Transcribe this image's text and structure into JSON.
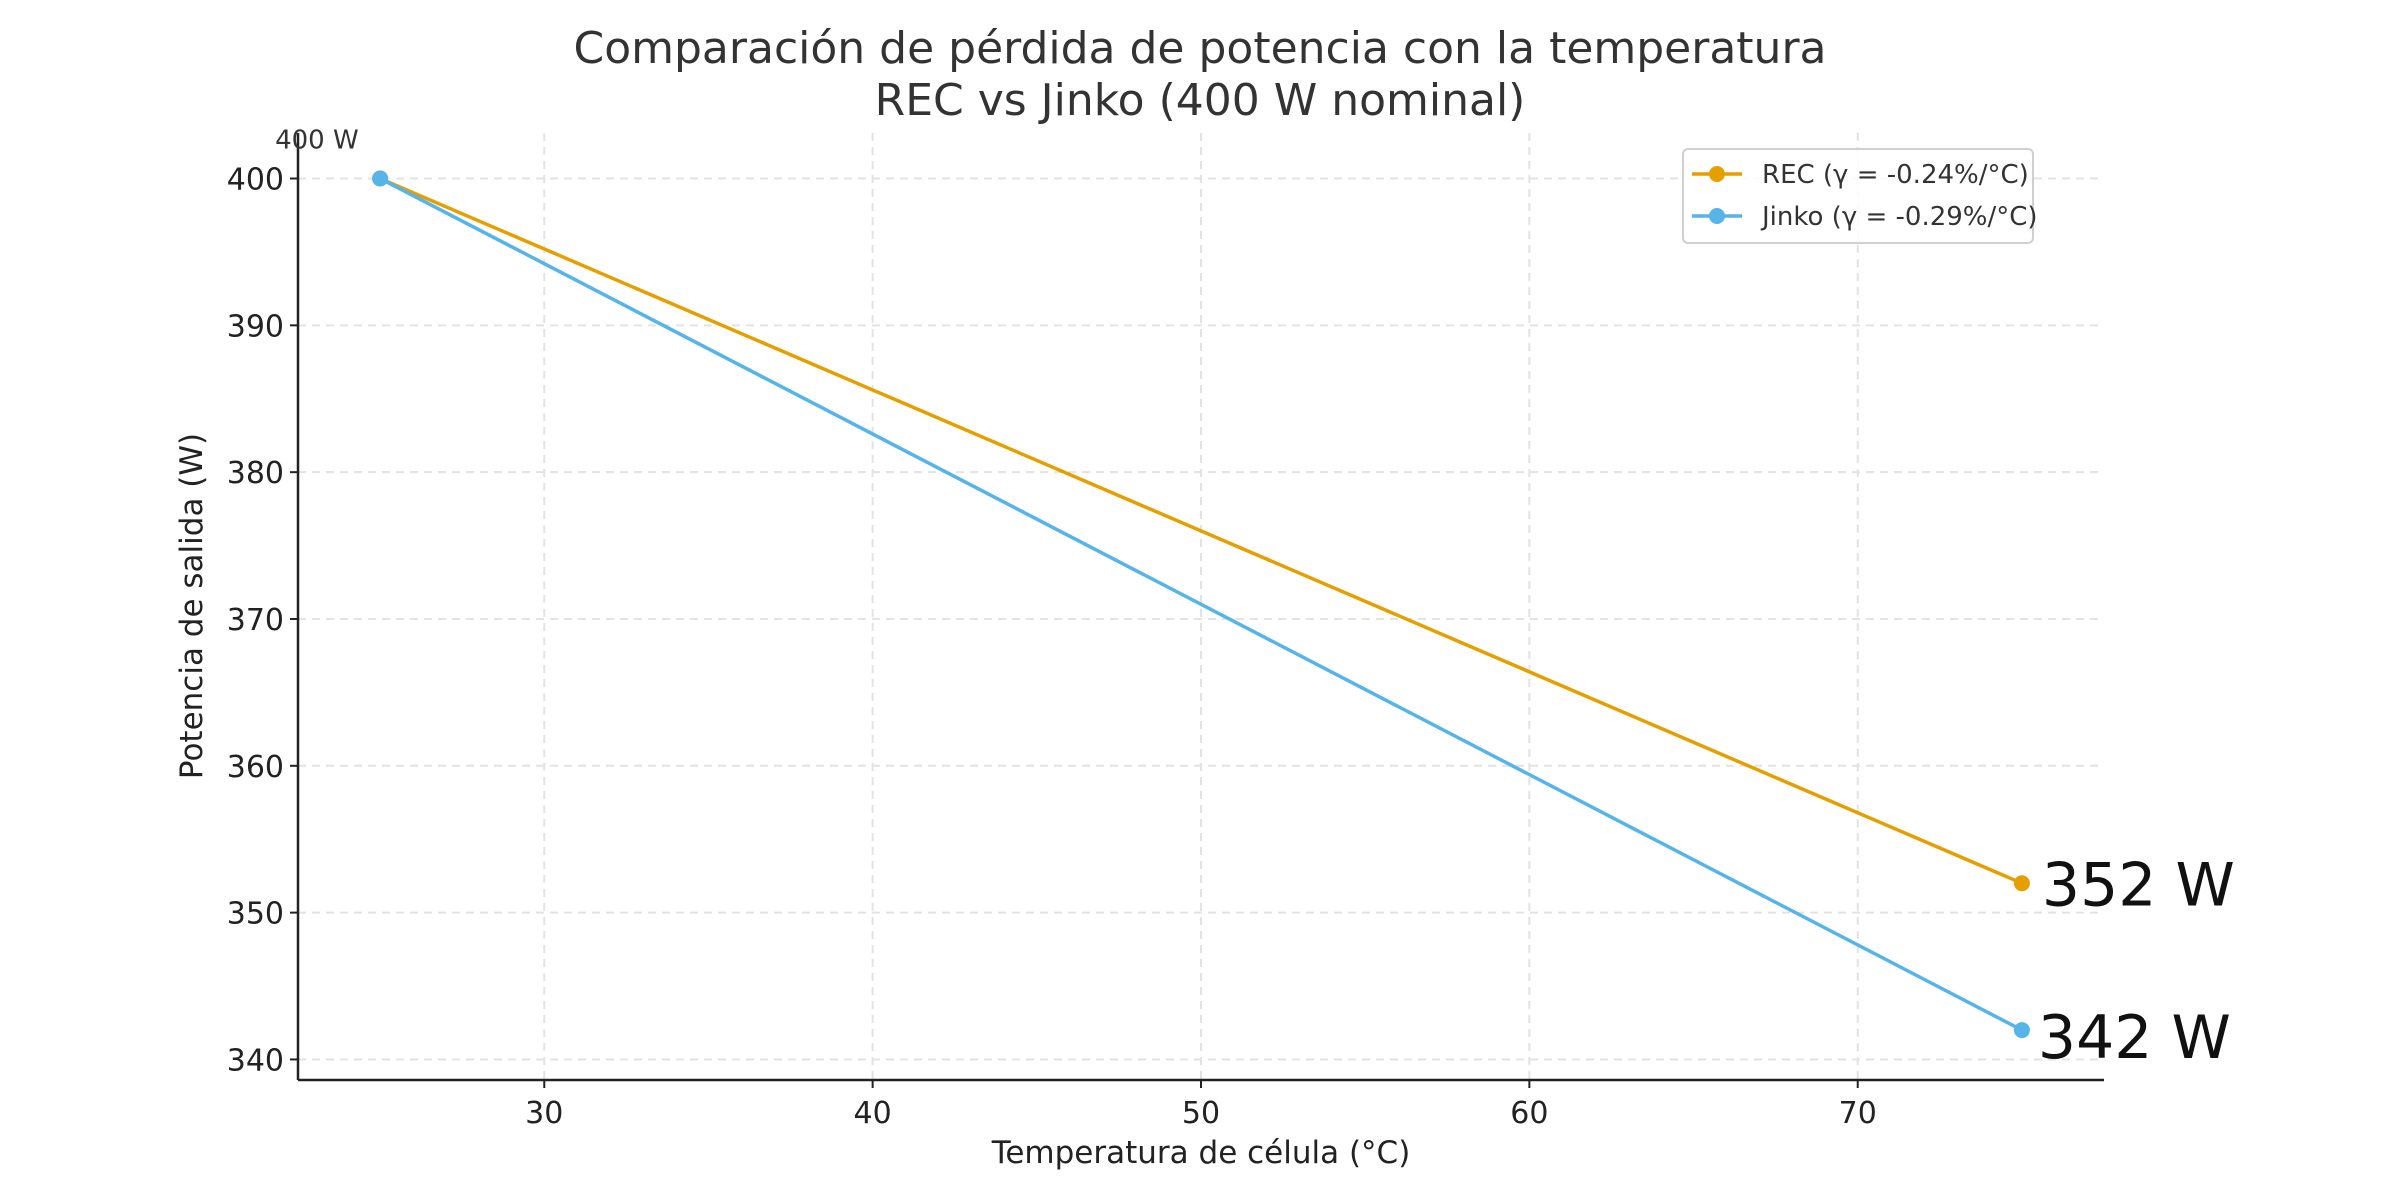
{
  "chart_data": {
    "type": "line",
    "title": "Comparación de pérdida de potencia con la temperatura",
    "subtitle": "REC vs Jinko (400 W nominal)",
    "xlabel": "Temperatura de célula (°C)",
    "ylabel": "Potencia de salida (W)",
    "xlim": [
      22.5,
      77.5
    ],
    "ylim": [
      338.6,
      403.1
    ],
    "xticks": [
      30,
      40,
      50,
      60,
      70
    ],
    "yticks": [
      340,
      350,
      360,
      370,
      380,
      390,
      400
    ],
    "grid": true,
    "legend_position": "top-right",
    "series": [
      {
        "name": "REC (γ = -0.24%/°C)",
        "color": "#E69F00",
        "x": [
          25,
          75
        ],
        "y": [
          400,
          352
        ]
      },
      {
        "name": "Jinko (γ = -0.29%/°C)",
        "color": "#56B4E9",
        "x": [
          25,
          75
        ],
        "y": [
          400,
          342
        ]
      }
    ],
    "annotations": [
      {
        "text": "400 W",
        "x": 25,
        "y": 400
      },
      {
        "text": "352 W",
        "x": 75,
        "y": 352
      },
      {
        "text": "342 W",
        "x": 75,
        "y": 342
      }
    ]
  }
}
